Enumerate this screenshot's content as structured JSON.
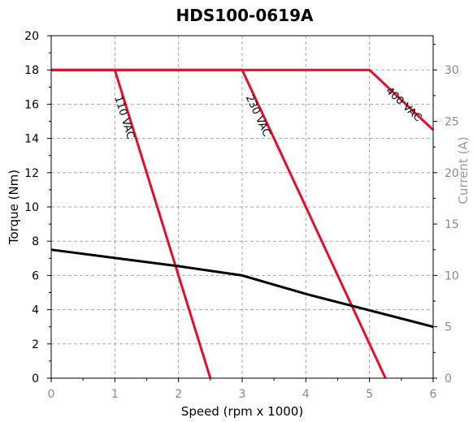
{
  "chart_data": {
    "type": "line",
    "title": "HDS100-0619A",
    "xlabel": "Speed (rpm x 1000)",
    "ylabel": "Torque (Nm)",
    "y2label": "Current (A)",
    "xlim": [
      0,
      6
    ],
    "ylim": [
      0,
      20
    ],
    "y2lim": [
      0,
      33.33
    ],
    "x_ticks": [
      "0",
      "1",
      "2",
      "3",
      "4",
      "5",
      "6"
    ],
    "y_ticks": [
      "0",
      "2",
      "4",
      "6",
      "8",
      "10",
      "12",
      "14",
      "16",
      "18",
      "20"
    ],
    "y2_ticks": [
      "0",
      "5",
      "10",
      "15",
      "20",
      "25",
      "30"
    ],
    "grid": true,
    "series": [
      {
        "name": "110 VAC",
        "color": "#e30e2b",
        "axis": "left",
        "points": [
          [
            0,
            18
          ],
          [
            1,
            18
          ],
          [
            2.5,
            0
          ]
        ]
      },
      {
        "name": "230 VAC",
        "color": "#e30e2b",
        "axis": "left",
        "points": [
          [
            0,
            18
          ],
          [
            3,
            18
          ],
          [
            5.25,
            0
          ]
        ]
      },
      {
        "name": "400 VAC",
        "color": "#e30e2b",
        "axis": "left",
        "points": [
          [
            0,
            18
          ],
          [
            5,
            18
          ],
          [
            6,
            14.5
          ]
        ]
      },
      {
        "name": "",
        "color": "#000000",
        "axis": "right",
        "points": [
          [
            0,
            12.5
          ],
          [
            1,
            11.7
          ],
          [
            2,
            10.9
          ],
          [
            3,
            10
          ],
          [
            4,
            8.2
          ],
          [
            5,
            6.6
          ],
          [
            6,
            5
          ]
        ]
      }
    ]
  }
}
